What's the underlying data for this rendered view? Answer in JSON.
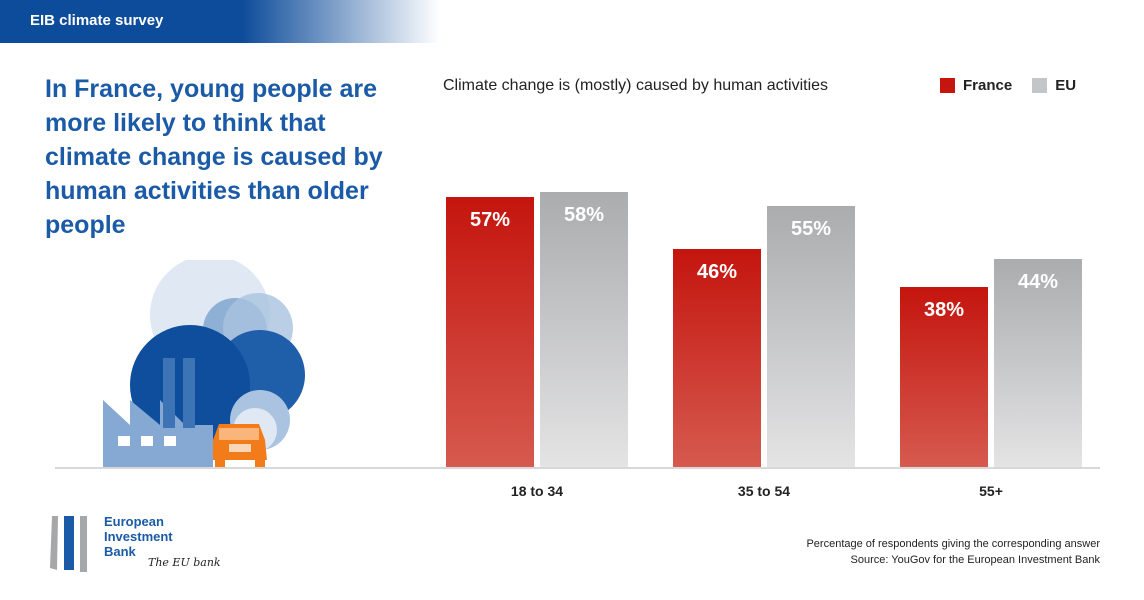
{
  "header": {
    "title": "EIB climate survey"
  },
  "headline": "In France, young people are more likely to think that climate change is caused by human activities than older people",
  "colors": {
    "brand": "#0d4c9a",
    "france": "#c4150e",
    "eu": "#b0b1b3"
  },
  "chart_data": {
    "type": "bar",
    "title": "Climate change is (mostly) caused by human activities",
    "categories": [
      "18 to 34",
      "35 to 54",
      "55+"
    ],
    "series": [
      {
        "name": "France",
        "values": [
          57,
          46,
          38
        ],
        "labels": [
          "57%",
          "46%",
          "38%"
        ]
      },
      {
        "name": "EU",
        "values": [
          58,
          55,
          44
        ],
        "labels": [
          "58%",
          "55%",
          "44%"
        ]
      }
    ],
    "ylim": [
      0,
      100
    ],
    "grid": false,
    "legend": "top-right",
    "xlabel": "",
    "ylabel": ""
  },
  "footer": {
    "note": "Percentage of respondents giving the corresponding answer",
    "source": "Source: YouGov for the European Investment Bank"
  },
  "logo": {
    "line1": "European",
    "line2": "Investment",
    "line3": "Bank",
    "tagline": "The EU bank"
  }
}
